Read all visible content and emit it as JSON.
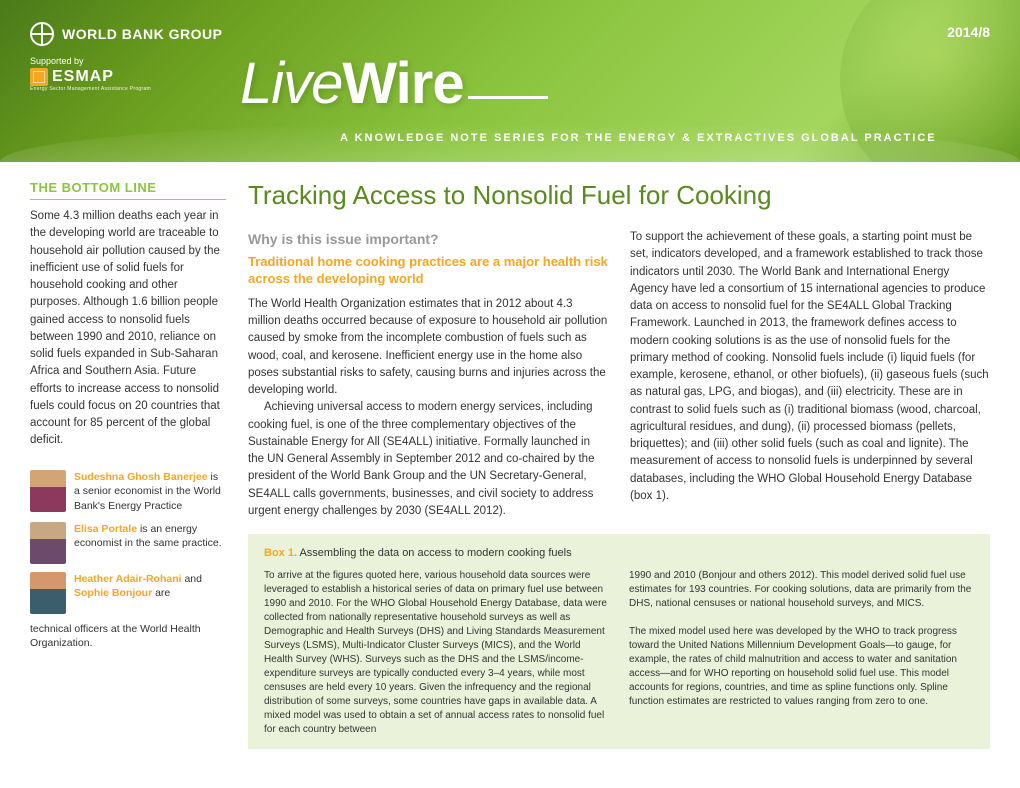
{
  "header": {
    "issue": "2014/8",
    "org": "WORLD BANK GROUP",
    "supported": "Supported by",
    "esmap": "ESMAP",
    "esmap_sub": "Energy Sector Management Assistance Program",
    "logo_l": "L",
    "logo_ive": "ive",
    "logo_wire": "Wire",
    "tagline": "A KNOWLEDGE NOTE SERIES FOR THE ENERGY & EXTRACTIVES GLOBAL PRACTICE",
    "bg_gradient_stops": [
      "#4a7a1a",
      "#6b9e1e",
      "#8bc53f",
      "#a4d65e",
      "#6b9e1e"
    ]
  },
  "sidebar": {
    "heading": "THE BOTTOM LINE",
    "body": "Some 4.3 million deaths each year in the developing world are traceable to household air pollution caused by the inefficient use of solid fuels for household cooking and other purposes. Although 1.6 billion people gained access to nonsolid fuels between 1990 and 2010, reliance on solid fuels expanded in Sub-Saharan Africa and Southern Asia. Future efforts to increase access to nonsolid fuels could focus on 20 countries that account for 85 percent of the global deficit."
  },
  "authors": {
    "a1_name": "Sudeshna Ghosh Banerjee",
    "a1_desc": " is a senior economist in the World Bank's Energy Practice",
    "a2_name": "Elisa Portale",
    "a2_desc": " is an energy economist in the same practice.",
    "a3_name1": "Heather Adair-Rohani",
    "a3_mid": " and ",
    "a3_name2": "Sophie Bonjour",
    "a3_desc": " are",
    "cont": "technical officers at the World Health Organization."
  },
  "main": {
    "title": "Tracking Access to Nonsolid Fuel for Cooking",
    "q": "Why is this issue important?",
    "sub": "Traditional home cooking practices are a major health risk across the developing world",
    "col1_p1": "The World Health Organization estimates that in 2012 about 4.3 million deaths occurred because of exposure to household air pollution caused by smoke from the incomplete combustion of fuels such as wood, coal, and kerosene. Inefficient energy use in the home also poses substantial risks to safety, causing burns and injuries across the developing world.",
    "col1_p2": "Achieving universal access to modern energy services, including cooking fuel, is one of the three complementary objectives of the Sustainable Energy for All (SE4ALL) initiative. Formally launched in the UN General Assembly in September 2012 and co-chaired by the president of the World Bank Group and the UN Secretary-General, SE4ALL calls governments, businesses, and civil society to address urgent energy challenges by 2030 (SE4ALL 2012).",
    "col2_p1": "To support the achievement of these goals, a starting point must be set, indicators developed, and a framework established to track those indicators until 2030. The World Bank and International Energy Agency have led a consortium of 15 international agencies to produce data on access to nonsolid fuel for the SE4ALL Global Tracking Framework. Launched in 2013, the framework defines access to modern cooking solutions is as the use of nonsolid fuels for the primary method of cooking. Nonsolid fuels include (i) liquid fuels (for example, kerosene, ethanol, or other biofuels), (ii) gaseous fuels (such as natural gas, LPG, and biogas), and (iii) electricity. These are in contrast to solid fuels such as (i) traditional biomass (wood, charcoal, agricultural residues, and dung), (ii) processed biomass (pellets, briquettes); and (iii) other solid fuels (such as coal and lignite). The measurement of access to nonsolid fuels is underpinned by several databases, including the WHO Global Household Energy Database (box 1)."
  },
  "box1": {
    "label": "Box 1.",
    "title": " Assembling the data on access to modern cooking fuels",
    "c1": "To arrive at the figures quoted here, various household data sources were leveraged to establish a historical series of data on primary fuel use between 1990 and 2010. For the WHO Global Household Energy Database, data were collected from nationally representative household surveys as well as Demographic and Health Surveys (DHS) and Living Standards Measurement Surveys (LSMS), Multi-Indicator Cluster Surveys (MICS), and the World Health Survey (WHS). Surveys such as the DHS and the LSMS/income-expenditure surveys are typically conducted every 3–4 years, while most censuses are held every 10 years. Given the infrequency and the regional distribution of some surveys, some countries have gaps in available data. A mixed model was used to obtain a set of annual access rates to nonsolid fuel for each country between",
    "c2": "1990 and 2010 (Bonjour and others 2012). This model derived solid fuel use estimates for 193 countries. For cooking solutions, data are primarily from the DHS, national censuses or national household surveys, and MICS.\n\nThe mixed model used here was developed by the WHO to track progress toward the United Nations Millennium Development Goals—to gauge, for example, the rates of child malnutrition and access to water and sanitation access—and for WHO reporting on household solid fuel use. This model accounts for regions, countries, and time as spline functions only. Spline function estimates are restricted to values ranging from zero to one.",
    "bg_color": "#eaf3d9"
  },
  "colors": {
    "green_accent": "#8bc53f",
    "green_title": "#5a8a1e",
    "orange": "#f5a623",
    "grey_hdr": "#999999",
    "text": "#333333"
  }
}
